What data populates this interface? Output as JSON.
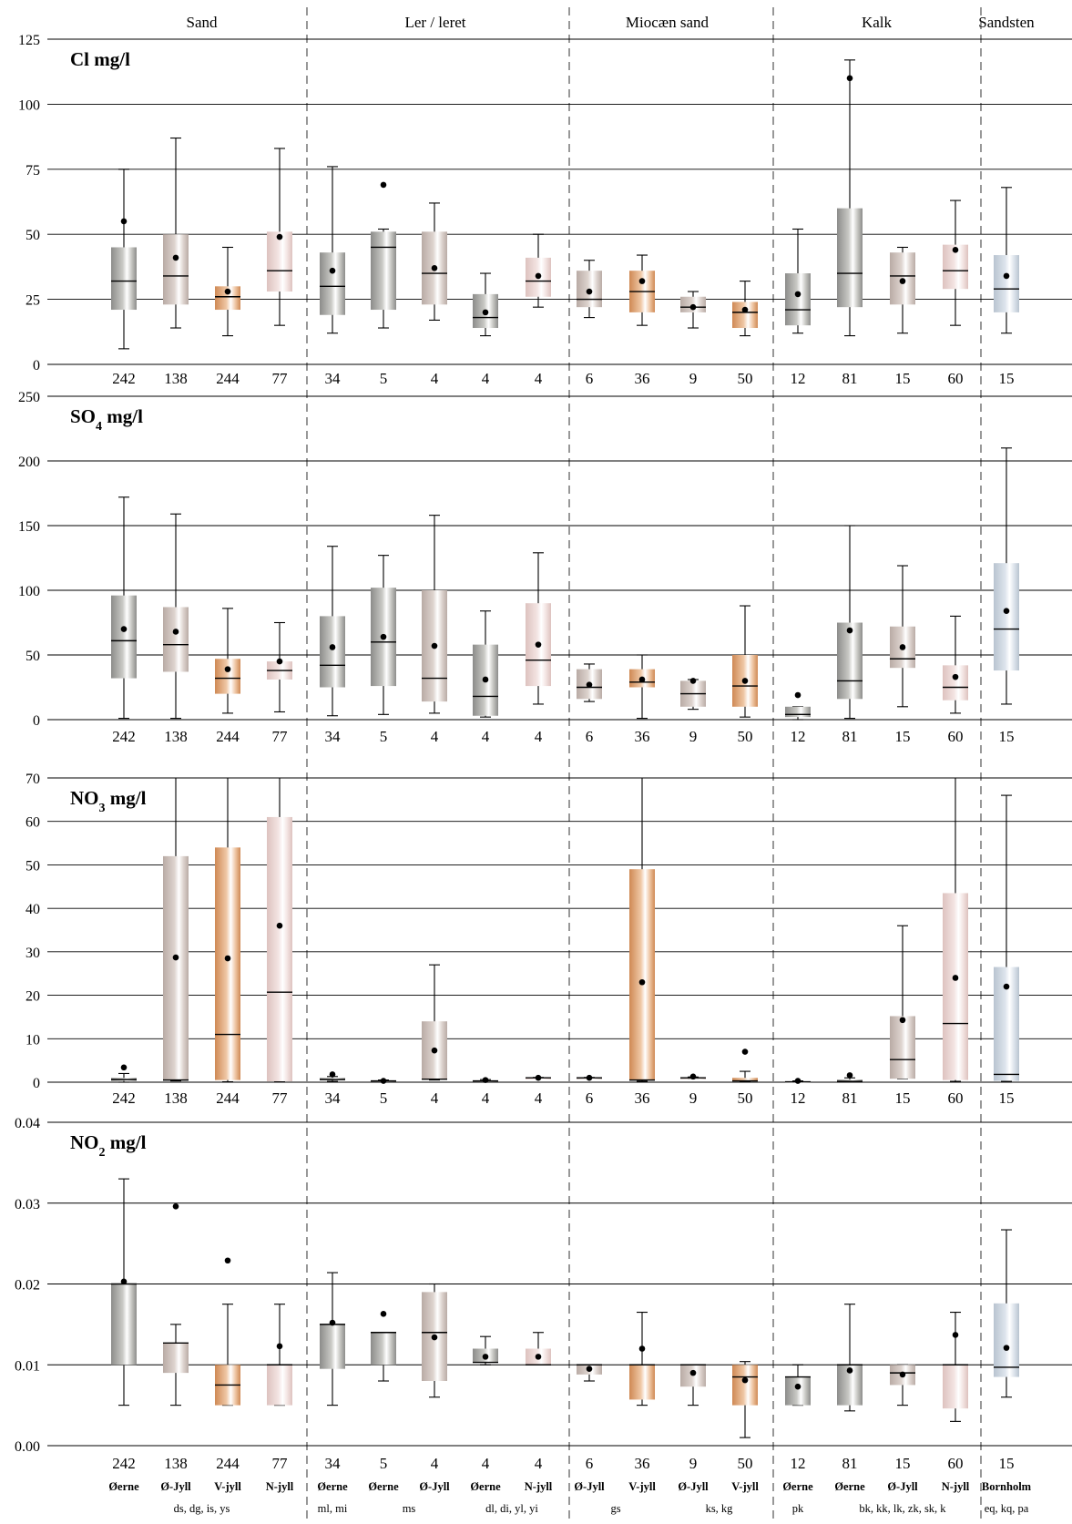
{
  "chart_data": {
    "type": "box",
    "groups": [
      {
        "label": "Sand",
        "first": 0,
        "count": 4
      },
      {
        "label": "Ler / leret",
        "first": 4,
        "count": 5
      },
      {
        "label": "Miocæn sand",
        "first": 9,
        "count": 4
      },
      {
        "label": "Kalk",
        "first": 13,
        "count": 4
      },
      {
        "label": "Sandsten",
        "first": 17,
        "count": 1
      }
    ],
    "categories": [
      {
        "region": "Øerne",
        "code": "242",
        "palette": "gray"
      },
      {
        "region": "Ø-Jyll",
        "code": "138",
        "palette": "taupe"
      },
      {
        "region": "V-jyll",
        "code": "244",
        "palette": "orange"
      },
      {
        "region": "N-jyll",
        "code": "77",
        "palette": "pink"
      },
      {
        "region": "Øerne",
        "code": "34",
        "palette": "gray"
      },
      {
        "region": "Øerne",
        "code": "5",
        "palette": "gray"
      },
      {
        "region": "Ø-Jyll",
        "code": "4",
        "palette": "taupe"
      },
      {
        "region": "Øerne",
        "code": "4",
        "palette": "gray"
      },
      {
        "region": "N-jyll",
        "code": "4",
        "palette": "pink"
      },
      {
        "region": "Ø-Jyll",
        "code": "6",
        "palette": "taupe"
      },
      {
        "region": "V-jyll",
        "code": "36",
        "palette": "orange"
      },
      {
        "region": "Ø-Jyll",
        "code": "9",
        "palette": "taupe"
      },
      {
        "region": "V-jyll",
        "code": "50",
        "palette": "orange"
      },
      {
        "region": "Øerne",
        "code": "12",
        "palette": "gray"
      },
      {
        "region": "Øerne",
        "code": "81",
        "palette": "gray"
      },
      {
        "region": "Ø-Jyll",
        "code": "15",
        "palette": "taupe"
      },
      {
        "region": "N-jyll",
        "code": "60",
        "palette": "pink"
      },
      {
        "region": "Bornholm",
        "code": "15",
        "palette": "blue"
      }
    ],
    "formation_codes": [
      {
        "label": "ds, dg, is, ys",
        "center": 1.5
      },
      {
        "label": "ml, mi",
        "center": 4
      },
      {
        "label": "ms",
        "center": 5.5
      },
      {
        "label": "dl, di, yl, yi",
        "center": 7.5
      },
      {
        "label": "gs",
        "center": 9.5
      },
      {
        "label": "ks, kg",
        "center": 11.5
      },
      {
        "label": "pk",
        "center": 13
      },
      {
        "label": "bk, kk, lk, zk, sk, k",
        "center": 15
      },
      {
        "label": "eq, kq, pa",
        "center": 17
      }
    ],
    "palettes": {
      "gray": [
        "#8c8c8a",
        "#c8c8c4"
      ],
      "taupe": [
        "#b9aba5",
        "#ddd3ce"
      ],
      "orange": [
        "#cf8954",
        "#efc7a5"
      ],
      "pink": [
        "#ddc2bf",
        "#f3e4e2"
      ],
      "blue": [
        "#b9c4d0",
        "#dde4ec"
      ]
    },
    "panels": [
      {
        "title_base": "Cl mg/l",
        "title_chem": "Cl",
        "title_sub": "",
        "title_unit": "mg/l",
        "ylim": [
          0,
          125
        ],
        "yticks": [
          "0",
          "25",
          "50",
          "75",
          "100",
          "125"
        ],
        "box": [
          [
            6,
            21,
            32,
            45,
            75,
            55
          ],
          [
            14,
            23,
            34,
            50,
            87,
            41
          ],
          [
            11,
            21,
            26,
            30,
            45,
            28
          ],
          [
            15,
            28,
            36,
            51,
            83,
            49
          ],
          [
            12,
            19,
            30,
            43,
            76,
            36
          ],
          [
            14,
            21,
            45,
            51,
            52,
            69
          ],
          [
            17,
            23,
            35,
            51,
            62,
            37
          ],
          [
            11,
            14,
            18,
            27,
            35,
            20
          ],
          [
            22,
            26,
            32,
            41,
            50,
            34
          ],
          [
            18,
            22,
            25,
            36,
            40,
            28
          ],
          [
            15,
            20,
            28,
            36,
            42,
            32
          ],
          [
            14,
            20,
            22,
            26,
            28,
            22
          ],
          [
            11,
            14,
            20,
            24,
            32,
            21
          ],
          [
            12,
            15,
            21,
            35,
            52,
            27
          ],
          [
            11,
            22,
            35,
            60,
            117,
            110
          ],
          [
            12,
            23,
            34,
            43,
            45,
            32
          ],
          [
            15,
            29,
            36,
            46,
            63,
            44
          ],
          [
            12,
            20,
            29,
            42,
            68,
            34
          ]
        ]
      },
      {
        "title_base": "SO4 mg/l",
        "title_chem": "SO",
        "title_sub": "4",
        "title_unit": "mg/l",
        "ylim": [
          0,
          250
        ],
        "yticks": [
          "0",
          "50",
          "100",
          "150",
          "200",
          "250"
        ],
        "box": [
          [
            1,
            32,
            61,
            96,
            172,
            70
          ],
          [
            1,
            37,
            58,
            87,
            159,
            68
          ],
          [
            5,
            20,
            32,
            47,
            86,
            39
          ],
          [
            6,
            31,
            38,
            45,
            75,
            45
          ],
          [
            3,
            25,
            42,
            80,
            134,
            56
          ],
          [
            4,
            26,
            60,
            102,
            127,
            64
          ],
          [
            5,
            14,
            32,
            100,
            158,
            57
          ],
          [
            2,
            3,
            18,
            58,
            84,
            31
          ],
          [
            12,
            26,
            46,
            90,
            129,
            58
          ],
          [
            14,
            16,
            25,
            39,
            43,
            27
          ],
          [
            1,
            25,
            29,
            39,
            50,
            31
          ],
          [
            8,
            10,
            20,
            30,
            31,
            30
          ],
          [
            2,
            10,
            26,
            50,
            88,
            30
          ],
          [
            0,
            2,
            4,
            10,
            10,
            19
          ],
          [
            1,
            16,
            30,
            75,
            150,
            69
          ],
          [
            10,
            40,
            47,
            72,
            119,
            56
          ],
          [
            5,
            15,
            25,
            42,
            80,
            33
          ],
          [
            12,
            38,
            70,
            121,
            210,
            84
          ]
        ]
      },
      {
        "title_base": "NO3 mg/l",
        "title_chem": "NO",
        "title_sub": "3",
        "title_unit": "mg/l",
        "ylim": [
          0,
          70
        ],
        "yticks": [
          "0",
          "10",
          "20",
          "30",
          "40",
          "50",
          "60",
          "70"
        ],
        "box": [
          [
            0.0,
            0.3,
            0.6,
            1.0,
            2.0,
            3.4
          ],
          [
            0.3,
            0.5,
            0.5,
            52,
            100,
            28.7
          ],
          [
            0.1,
            0.5,
            11,
            54,
            100,
            28.5
          ],
          [
            0.1,
            0.2,
            20.7,
            61,
            100,
            36.0
          ],
          [
            0.2,
            0.5,
            0.6,
            1.0,
            1.3,
            1.8
          ],
          [
            0.1,
            0.2,
            0.3,
            0.4,
            0.5,
            0.3
          ],
          [
            0.5,
            0.6,
            0.7,
            14,
            27,
            7.3
          ],
          [
            0.1,
            0.2,
            0.3,
            0.4,
            0.6,
            0.5
          ],
          [
            0.9,
            0.9,
            1.0,
            1.0,
            1.1,
            1.0
          ],
          [
            0.9,
            0.9,
            1.0,
            1.0,
            1.1,
            1.0
          ],
          [
            0.2,
            0.5,
            0.5,
            49,
            100,
            23.0
          ],
          [
            0.8,
            0.9,
            1.0,
            1.0,
            1.2,
            1.3
          ],
          [
            0.1,
            0.2,
            0.3,
            1.0,
            2.5,
            7.0
          ],
          [
            0.0,
            0.1,
            0.1,
            0.2,
            0.3,
            0.3
          ],
          [
            0.1,
            0.2,
            0.2,
            0.6,
            1.0,
            1.6
          ],
          [
            0.8,
            0.8,
            5.2,
            15.2,
            36.0,
            14.3
          ],
          [
            0.2,
            0.5,
            13.5,
            43.5,
            100,
            24.0
          ],
          [
            0.2,
            0.3,
            1.8,
            26.5,
            66.0,
            22.0
          ]
        ]
      },
      {
        "title_base": "NO2 mg/l",
        "title_chem": "NO",
        "title_sub": "2",
        "title_unit": "mg/l",
        "ylim": [
          0,
          0.04
        ],
        "yticks": [
          "0.00",
          "0.01",
          "0.02",
          "0.03",
          "0.04"
        ],
        "box": [
          [
            0.005,
            0.01,
            0.02,
            0.02,
            0.033,
            0.0203
          ],
          [
            0.005,
            0.009,
            0.0127,
            0.0127,
            0.015,
            0.0296
          ],
          [
            0.005,
            0.005,
            0.0075,
            0.01,
            0.0175,
            0.0229
          ],
          [
            0.005,
            0.005,
            0.01,
            0.01,
            0.0175,
            0.0123
          ],
          [
            0.005,
            0.0095,
            0.015,
            0.015,
            0.0214,
            0.0152
          ],
          [
            0.008,
            0.01,
            0.014,
            0.014,
            0.014,
            0.0163
          ],
          [
            0.006,
            0.008,
            0.014,
            0.019,
            0.02,
            0.0134
          ],
          [
            0.01,
            0.0103,
            0.0103,
            0.012,
            0.0135,
            0.011
          ],
          [
            0.01,
            0.01,
            0.01,
            0.012,
            0.014,
            0.011
          ],
          [
            0.008,
            0.0088,
            0.01,
            0.01,
            0.01,
            0.0095
          ],
          [
            0.005,
            0.0057,
            0.01,
            0.01,
            0.0165,
            0.012
          ],
          [
            0.005,
            0.0073,
            0.01,
            0.01,
            0.01,
            0.009
          ],
          [
            0.001,
            0.005,
            0.0085,
            0.01,
            0.0104,
            0.0081
          ],
          [
            0.005,
            0.005,
            0.0085,
            0.0085,
            0.01,
            0.0073
          ],
          [
            0.0043,
            0.005,
            0.01,
            0.01,
            0.0175,
            0.0093
          ],
          [
            0.005,
            0.0075,
            0.009,
            0.01,
            0.01,
            0.0088
          ],
          [
            0.003,
            0.0046,
            0.01,
            0.01,
            0.0165,
            0.0137
          ],
          [
            0.006,
            0.0085,
            0.0097,
            0.0176,
            0.0267,
            0.0121
          ]
        ]
      }
    ]
  }
}
